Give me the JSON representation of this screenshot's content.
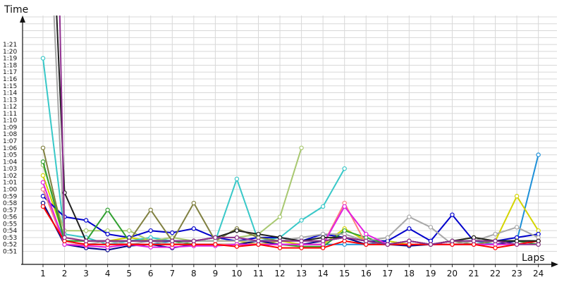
{
  "chart_data": {
    "type": "line",
    "ylabel": "Time",
    "xlabel": "Laps",
    "x": [
      1,
      2,
      3,
      4,
      5,
      6,
      7,
      8,
      9,
      10,
      11,
      12,
      13,
      14,
      15,
      16,
      17,
      18,
      19,
      20,
      21,
      22,
      23,
      24
    ],
    "y_ticks": [
      "0:51",
      "0:52",
      "0:53",
      "0:54",
      "0:55",
      "0:56",
      "0:57",
      "0:58",
      "0:59",
      "1:00",
      "1:01",
      "1:02",
      "1:03",
      "1:04",
      "1:05",
      "1:06",
      "1:07",
      "1:08",
      "1:09",
      "1:10",
      "1:11",
      "1:12",
      "1:13",
      "1:14",
      "1:15",
      "1:16",
      "1:17",
      "1:18",
      "1:19",
      "1:20",
      "1:21"
    ],
    "ylim_seconds": [
      50,
      82
    ],
    "grid": true,
    "legend": "none",
    "series": [
      {
        "color": "#1e90d8",
        "values": [
          60,
          52.5,
          52,
          52,
          52,
          52,
          52.5,
          52,
          52,
          52,
          52,
          52,
          52,
          52,
          52,
          52,
          52.5,
          52,
          52,
          52.5,
          52.5,
          52,
          52.5,
          65
        ]
      },
      {
        "color": "#d4d400",
        "values": [
          62,
          53,
          52.5,
          52.5,
          53,
          52.5,
          52,
          52.5,
          52.5,
          52.5,
          52,
          52.5,
          52,
          52,
          54.3,
          52.5,
          52.5,
          52,
          52,
          52.5,
          53,
          52.5,
          59,
          54
        ]
      },
      {
        "color": "#38c8c8",
        "values": [
          79,
          53.5,
          53,
          52,
          52.5,
          53,
          52.5,
          52.5,
          52.5,
          61.5,
          52.5,
          53,
          55.5,
          57.5,
          63,
          null,
          null,
          null,
          null,
          null,
          null,
          null,
          null,
          null
        ]
      },
      {
        "color": "#a8c870",
        "values": [
          63.5,
          54,
          54,
          54,
          54,
          52.5,
          53,
          52.5,
          53,
          53,
          53.5,
          56,
          66,
          null,
          null,
          null,
          null,
          null,
          null,
          null,
          null,
          null,
          null,
          null
        ]
      },
      {
        "color": "#000088",
        "values": [
          58,
          52,
          51.5,
          51.2,
          51.8,
          52,
          51.5,
          52,
          52,
          52,
          52.5,
          52,
          52,
          52.5,
          53,
          52,
          52,
          51.8,
          52,
          52,
          52,
          52,
          52.5,
          52.5
        ]
      },
      {
        "color": "#0000cc",
        "values": [
          59,
          56,
          55.5,
          53.5,
          53,
          54,
          53.7,
          54.3,
          53,
          52.5,
          53,
          53,
          52.5,
          53.5,
          53,
          52.5,
          52.5,
          54.3,
          52.5,
          56.3,
          52.5,
          52.5,
          53,
          53.5
        ]
      },
      {
        "color": "#808040",
        "values": [
          66,
          52.5,
          52.5,
          52.5,
          52.5,
          57,
          52.5,
          58,
          52.5,
          54.3,
          53,
          52.5,
          52.5,
          52.5,
          53,
          52.5,
          52,
          52.5,
          52,
          52.5,
          52,
          52.5,
          52.5,
          52.5
        ]
      },
      {
        "color": "#30a030",
        "values": [
          64,
          52.5,
          52.5,
          57,
          52.5,
          52.5,
          52.5,
          52,
          52,
          52,
          52,
          52,
          51.7,
          51.7,
          54,
          53,
          52,
          52.5,
          52,
          52.5,
          52.5,
          52.5,
          52.5,
          52
        ]
      },
      {
        "color": "#a8a8a8",
        "values": [
          120,
          52,
          52,
          52.5,
          52,
          52.5,
          52,
          52.5,
          52.5,
          52.5,
          52.5,
          52.5,
          53,
          53.5,
          53.5,
          52.5,
          53,
          56,
          54.5,
          52,
          52.5,
          53.5,
          54.5,
          53
        ]
      },
      {
        "color": "#ff8080",
        "values": [
          60,
          52,
          52,
          52,
          52,
          52,
          52,
          52,
          52,
          52,
          52,
          52,
          52,
          52,
          58,
          52,
          52,
          52,
          52,
          52,
          52,
          52,
          52,
          52.5
        ]
      },
      {
        "color": "#e020e0",
        "values": [
          61,
          52,
          51.8,
          51.6,
          52,
          51.6,
          51.6,
          51.8,
          51.8,
          52,
          52,
          52,
          52,
          52,
          57.5,
          53.5,
          52,
          52.5,
          52,
          52,
          52,
          52,
          52,
          52.5
        ]
      },
      {
        "color": "#ff0000",
        "values": [
          57.5,
          52.5,
          52,
          52,
          52,
          52,
          52,
          52,
          52,
          51.7,
          52,
          51.5,
          51.5,
          51.5,
          52.5,
          52,
          52,
          52,
          52,
          52,
          52,
          51.5,
          52,
          52.5
        ]
      },
      {
        "color": "#202020",
        "values": [
          130,
          59.5,
          52.5,
          52.5,
          52.5,
          52.5,
          52.5,
          52.5,
          53,
          54,
          53.5,
          53,
          52.5,
          53,
          53,
          52.5,
          52,
          52.5,
          52,
          52.5,
          53,
          52.5,
          52.5,
          52.5
        ]
      },
      {
        "color": "#903090",
        "values": [
          200,
          53,
          52.5,
          52.5,
          52.5,
          52.5,
          52.5,
          52.5,
          53,
          53,
          52.5,
          52.5,
          52.5,
          52.5,
          53,
          52.5,
          52,
          52.5,
          52,
          52.5,
          52.5,
          52.5,
          52,
          52
        ]
      }
    ]
  }
}
